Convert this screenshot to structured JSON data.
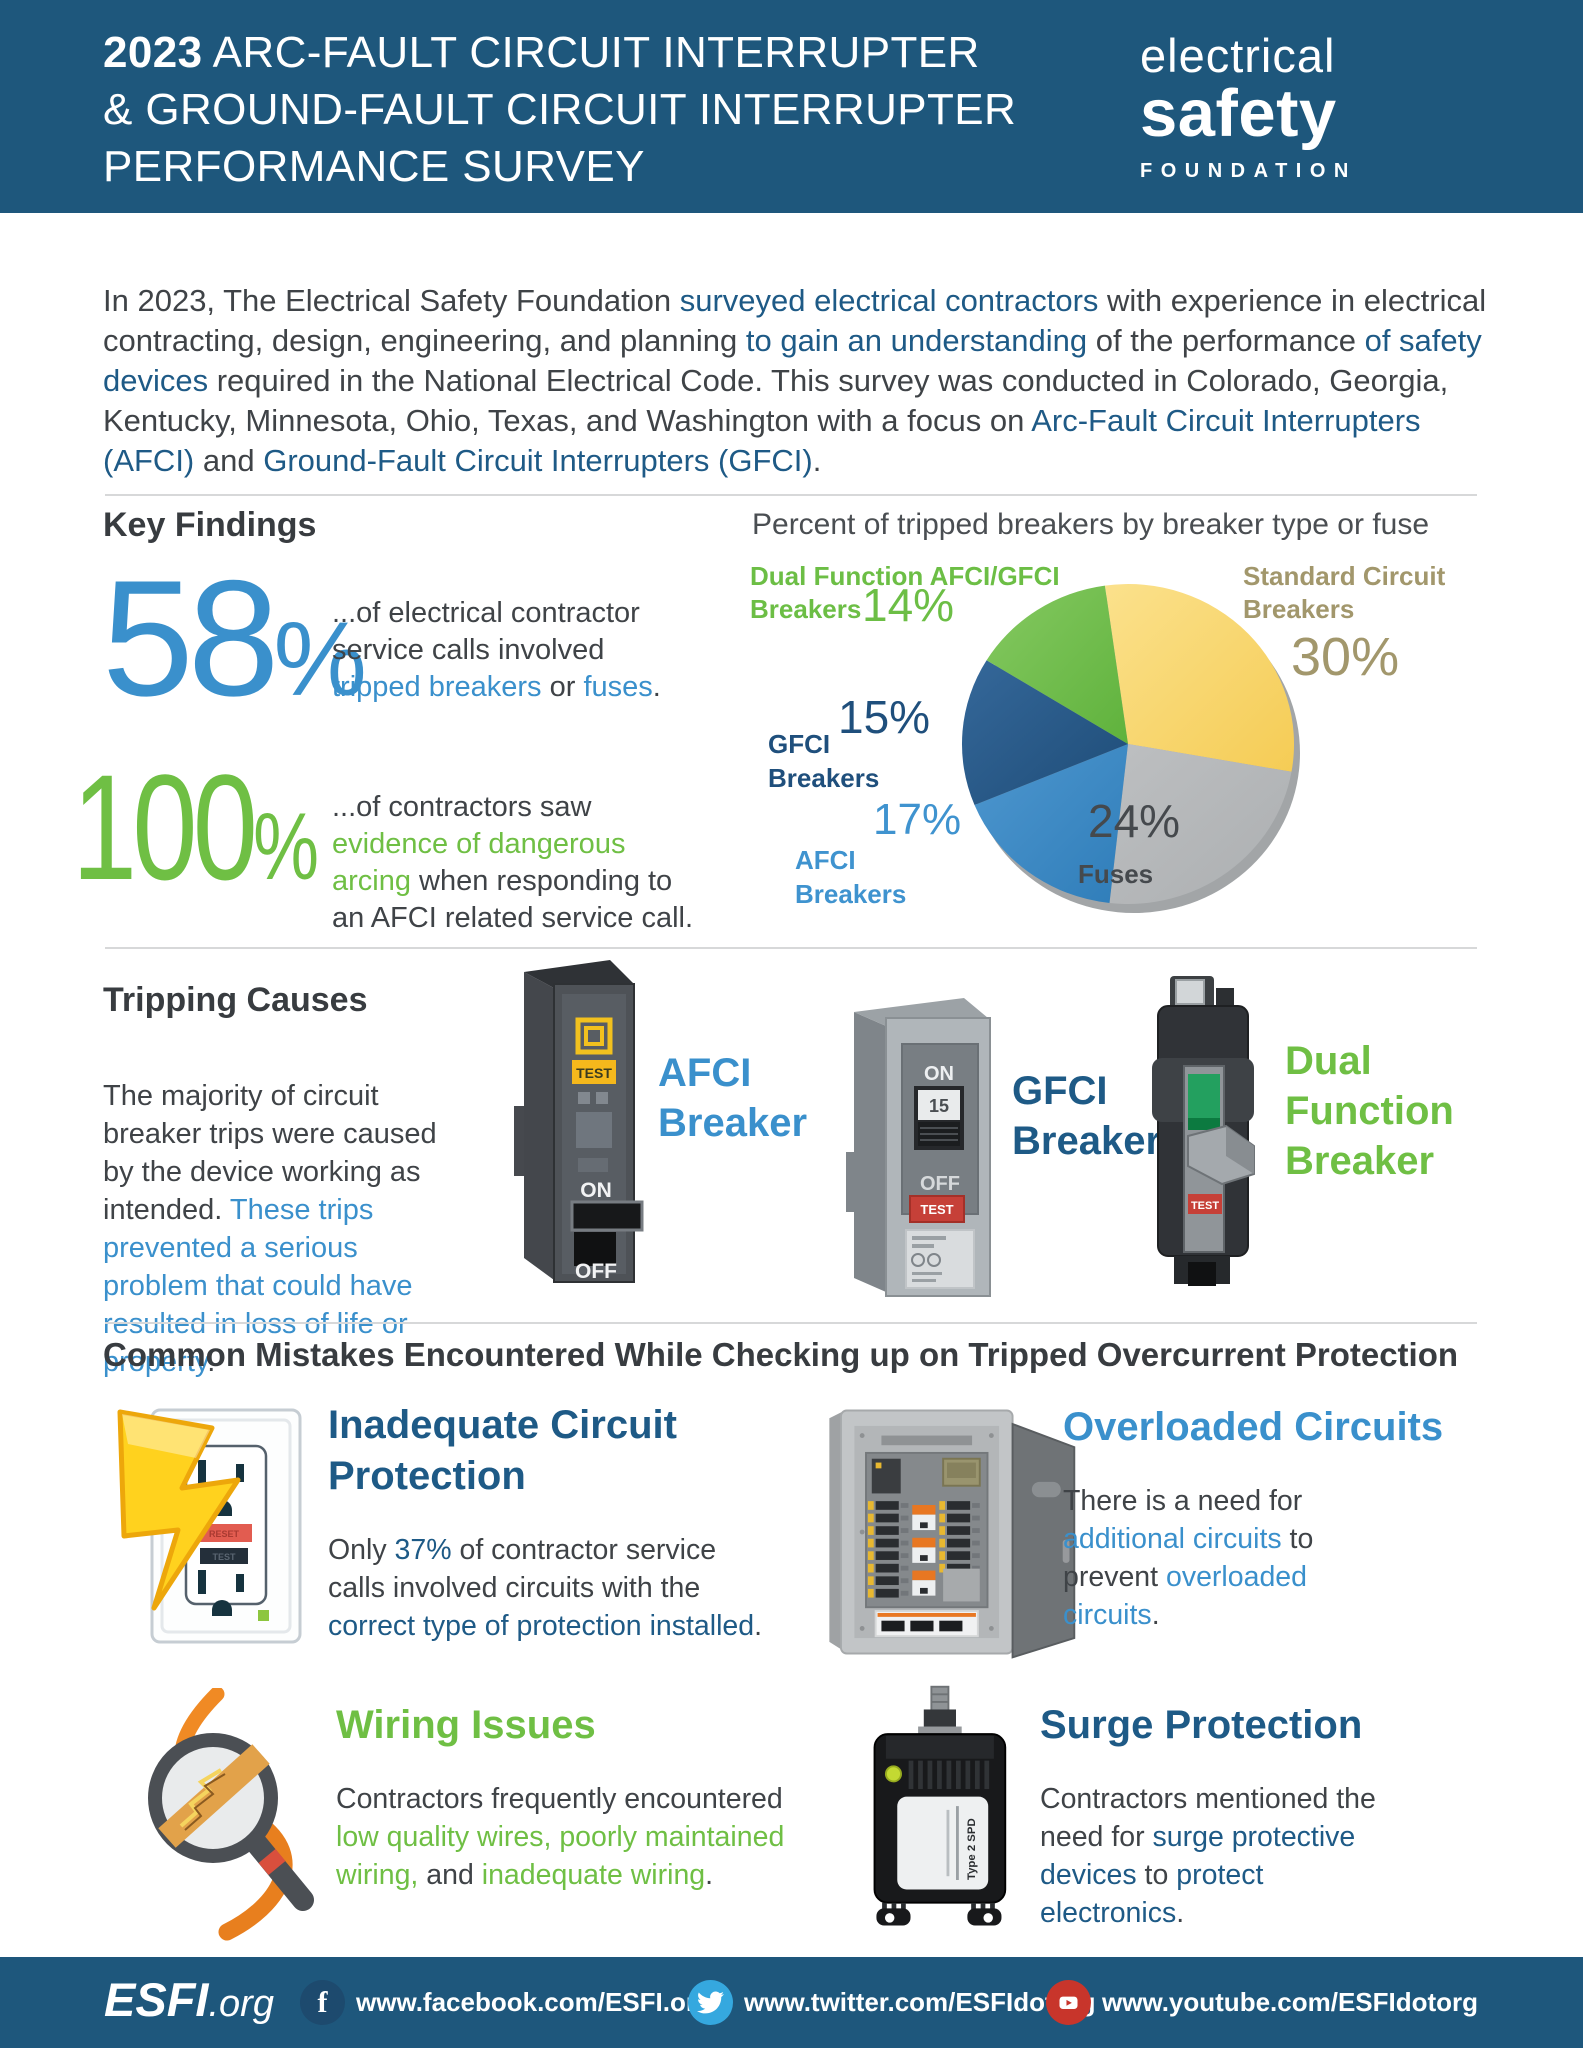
{
  "colors": {
    "header_bg": "#1E577C",
    "dark": "#3F4347",
    "navy": "#1E5A86",
    "blue": "#3A90CC",
    "green": "#6FBF44",
    "tan": "#A2976C",
    "gray_label": "#45494D",
    "rule": "#D7D8D9",
    "facebook": "#1D4A6E",
    "twitter": "#35A8DF",
    "youtube": "#C8352B"
  },
  "header": {
    "year": "2023",
    "title_line1": " ARC-FAULT CIRCUIT INTERRUPTER",
    "title_line2": "& GROUND-FAULT CIRCUIT INTERRUPTER",
    "title_line3": "PERFORMANCE SURVEY",
    "logo_line1": "electrical",
    "logo_line2": "safety",
    "logo_line3": "FOUNDATION"
  },
  "intro": {
    "segments": [
      {
        "text": "In 2023, The Electrical Safety Foundation ",
        "color": "dark"
      },
      {
        "text": "surveyed electrical contractors",
        "color": "navy"
      },
      {
        "text": " with experience in electrical contracting, design, engineering, and planning ",
        "color": "dark"
      },
      {
        "text": "to gain an understanding",
        "color": "navy"
      },
      {
        "text": " of the performance ",
        "color": "dark"
      },
      {
        "text": "of safety devices",
        "color": "navy"
      },
      {
        "text": " required in the National Electrical Code.  This survey was conducted in Colorado, Georgia, Kentucky, Minnesota, Ohio, Texas, and Washington with a focus on ",
        "color": "dark"
      },
      {
        "text": "Arc-Fault Circuit Interrupters (AFCI)",
        "color": "navy"
      },
      {
        "text": " and ",
        "color": "dark"
      },
      {
        "text": "Ground-Fault Circuit Interrupters (GFCI)",
        "color": "navy"
      },
      {
        "text": ".",
        "color": "dark"
      }
    ]
  },
  "key_findings": {
    "heading": "Key Findings",
    "stats": [
      {
        "num": "58",
        "sign": "%",
        "segments": [
          {
            "text": "...of electrical contractor service calls involved ",
            "color": "dark"
          },
          {
            "text": "tripped breakers",
            "color": "blue"
          },
          {
            "text": " or ",
            "color": "dark"
          },
          {
            "text": "fuses",
            "color": "blue"
          },
          {
            "text": ".",
            "color": "dark"
          }
        ]
      },
      {
        "num": "100",
        "sign": "%",
        "segments": [
          {
            "text": "...of contractors saw ",
            "color": "dark"
          },
          {
            "text": "evidence of dangerous arcing",
            "color": "green"
          },
          {
            "text": " when responding to an AFCI related service call.",
            "color": "dark"
          }
        ]
      }
    ]
  },
  "chart_data": {
    "type": "pie",
    "title": "Percent of tripped breakers by breaker type or fuse",
    "start_angle_deg": -8,
    "clockwise": true,
    "legend_position": "around",
    "slices": [
      {
        "label": "Standard Circuit Breakers",
        "label_lines": [
          "Standard Circuit",
          "Breakers"
        ],
        "value": 30,
        "pct": "30%",
        "color": "#FBE18C",
        "color2": "#F5CC55",
        "label_color": "#A2976C"
      },
      {
        "label": "Fuses",
        "label_lines": [
          "Fuses"
        ],
        "value": 24,
        "pct": "24%",
        "color": "#BDBFC1",
        "color2": "#ACAFB1",
        "label_color": "#45494D"
      },
      {
        "label": "AFCI Breakers",
        "label_lines": [
          "AFCI",
          "Breakers"
        ],
        "value": 17,
        "pct": "17%",
        "color": "#4E97CF",
        "color2": "#2F7DB9",
        "label_color": "#3F93CF"
      },
      {
        "label": "GFCI Breakers",
        "label_lines": [
          "GFCI",
          "Breakers"
        ],
        "value": 15,
        "pct": "15%",
        "color": "#35689A",
        "color2": "#1E4C77",
        "label_color": "#1F4F7C"
      },
      {
        "label": "Dual Function AFCI/GFCI Breakers",
        "label_lines": [
          "Dual Function AFCI/GFCI",
          "Breakers"
        ],
        "value": 14,
        "pct": "14%",
        "color": "#85C961",
        "color2": "#5FB23C",
        "label_color": "#6CBE45"
      }
    ]
  },
  "tripping": {
    "heading": "Tripping Causes",
    "segments": [
      {
        "text": "The majority of circuit breaker trips were caused by the device working as intended. ",
        "color": "dark"
      },
      {
        "text": "These trips prevented a serious problem that could have resulted in loss of life or property",
        "color": "blue"
      },
      {
        "text": ".",
        "color": "dark"
      }
    ],
    "breakers": [
      {
        "label": "AFCI Breaker"
      },
      {
        "label": "GFCI Breaker"
      },
      {
        "label": "Dual Function Breaker"
      }
    ]
  },
  "mistakes": {
    "heading": "Common Mistakes Encountered While Checking up on Tripped Overcurrent Protection",
    "items": [
      {
        "title": "Inadequate Circuit Protection",
        "segments": [
          {
            "text": "Only ",
            "color": "dark"
          },
          {
            "text": "37%",
            "color": "navy"
          },
          {
            "text": " of contractor service calls involved circuits with the ",
            "color": "dark"
          },
          {
            "text": "correct type of protection installed",
            "color": "navy"
          },
          {
            "text": ".",
            "color": "dark"
          }
        ]
      },
      {
        "title": "Overloaded Circuits",
        "segments": [
          {
            "text": "There is a need for ",
            "color": "dark"
          },
          {
            "text": "additional circuits",
            "color": "blue"
          },
          {
            "text": " to prevent ",
            "color": "dark"
          },
          {
            "text": "overloaded circuits",
            "color": "blue"
          },
          {
            "text": ".",
            "color": "dark"
          }
        ]
      },
      {
        "title": "Wiring Issues",
        "segments": [
          {
            "text": "Contractors frequently encountered ",
            "color": "dark"
          },
          {
            "text": "low quality wires, poorly maintained wiring,",
            "color": "green"
          },
          {
            "text": " and ",
            "color": "dark"
          },
          {
            "text": "inadequate wiring",
            "color": "green"
          },
          {
            "text": ".",
            "color": "dark"
          }
        ]
      },
      {
        "title": "Surge Protection",
        "segments": [
          {
            "text": "Contractors mentioned the need for ",
            "color": "dark"
          },
          {
            "text": "surge protective devices",
            "color": "navy"
          },
          {
            "text": " to ",
            "color": "dark"
          },
          {
            "text": "protect electronics",
            "color": "navy"
          },
          {
            "text": ".",
            "color": "dark"
          }
        ]
      }
    ]
  },
  "illustrations": {
    "afci_breaker": {
      "test": "TEST",
      "on": "ON",
      "off": "OFF"
    },
    "gfci_breaker": {
      "on": "ON",
      "rocker": "15",
      "off": "OFF",
      "test": "TEST"
    },
    "dual_breaker": {
      "test": "TEST"
    },
    "outlet": {
      "reset": "RESET",
      "test": "TEST"
    },
    "surge_device": {
      "label": "Type 2 SPD"
    }
  },
  "footer": {
    "brand_bold": "ESFI",
    "brand_suffix": ".org",
    "links": [
      {
        "icon": "facebook-icon",
        "url": "www.facebook.com/ESFI.org"
      },
      {
        "icon": "twitter-icon",
        "url": "www.twitter.com/ESFIdotorg"
      },
      {
        "icon": "youtube-icon",
        "url": "www.youtube.com/ESFIdotorg"
      }
    ]
  }
}
